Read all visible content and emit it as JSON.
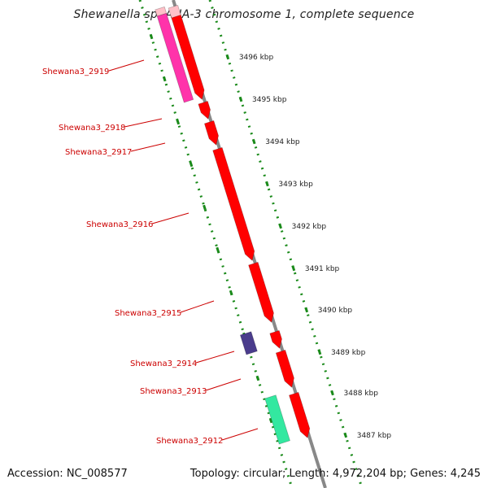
{
  "title": "Shewanella sp. ANA-3 chromosome 1, complete sequence",
  "footer": {
    "accession": "Accession: NC_008577",
    "topology": "Topology: circular; Length: 4,972,204 bp; Genes: 4,245"
  },
  "colors": {
    "forward_gene": "#ff0000",
    "magenta_gene": "#ff33aa",
    "pink_gene": "#ffc0c8",
    "navy_gene": "#4a3c8c",
    "mint_gene": "#33e8a0",
    "backbone": "#888888",
    "dotted_axis": "#1a8a1a",
    "label": "#cc0000"
  },
  "scale_ticks": [
    {
      "label": "3496 kbp"
    },
    {
      "label": "3495 kbp"
    },
    {
      "label": "3494 kbp"
    },
    {
      "label": "3493 kbp"
    },
    {
      "label": "3492 kbp"
    },
    {
      "label": "3491 kbp"
    },
    {
      "label": "3490 kbp"
    },
    {
      "label": "3489 kbp"
    },
    {
      "label": "3488 kbp"
    },
    {
      "label": "3487 kbp"
    }
  ],
  "gene_labels": [
    {
      "text": "Shewana3_2919"
    },
    {
      "text": "Shewana3_2918"
    },
    {
      "text": "Shewana3_2917"
    },
    {
      "text": "Shewana3_2916"
    },
    {
      "text": "Shewana3_2915"
    },
    {
      "text": "Shewana3_2914"
    },
    {
      "text": "Shewana3_2913"
    },
    {
      "text": "Shewana3_2912"
    }
  ]
}
